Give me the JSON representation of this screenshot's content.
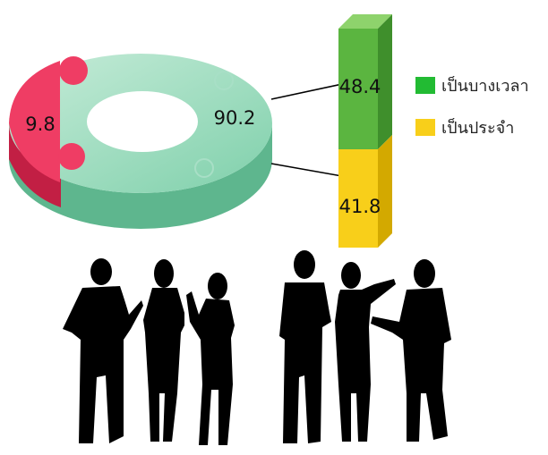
{
  "chart_data": [
    {
      "type": "pie",
      "variant": "3d-donut",
      "values": [
        90.2,
        9.8
      ],
      "value_labels": [
        "90.2",
        "9.8"
      ],
      "colors": [
        "#6dcaa2",
        "#e0315a"
      ]
    },
    {
      "type": "bar",
      "variant": "stacked-3d-column",
      "series": [
        {
          "name": "เป็นบางเวลา",
          "value": 48.4,
          "value_label": "48.4",
          "color": "#5bb540"
        },
        {
          "name": "เป็นประจำ",
          "value": 41.8,
          "value_label": "41.8",
          "color": "#f8cf1a"
        }
      ],
      "legend_position": "right"
    }
  ],
  "decoration": {
    "silhouettes": 6,
    "color": "#000000"
  }
}
